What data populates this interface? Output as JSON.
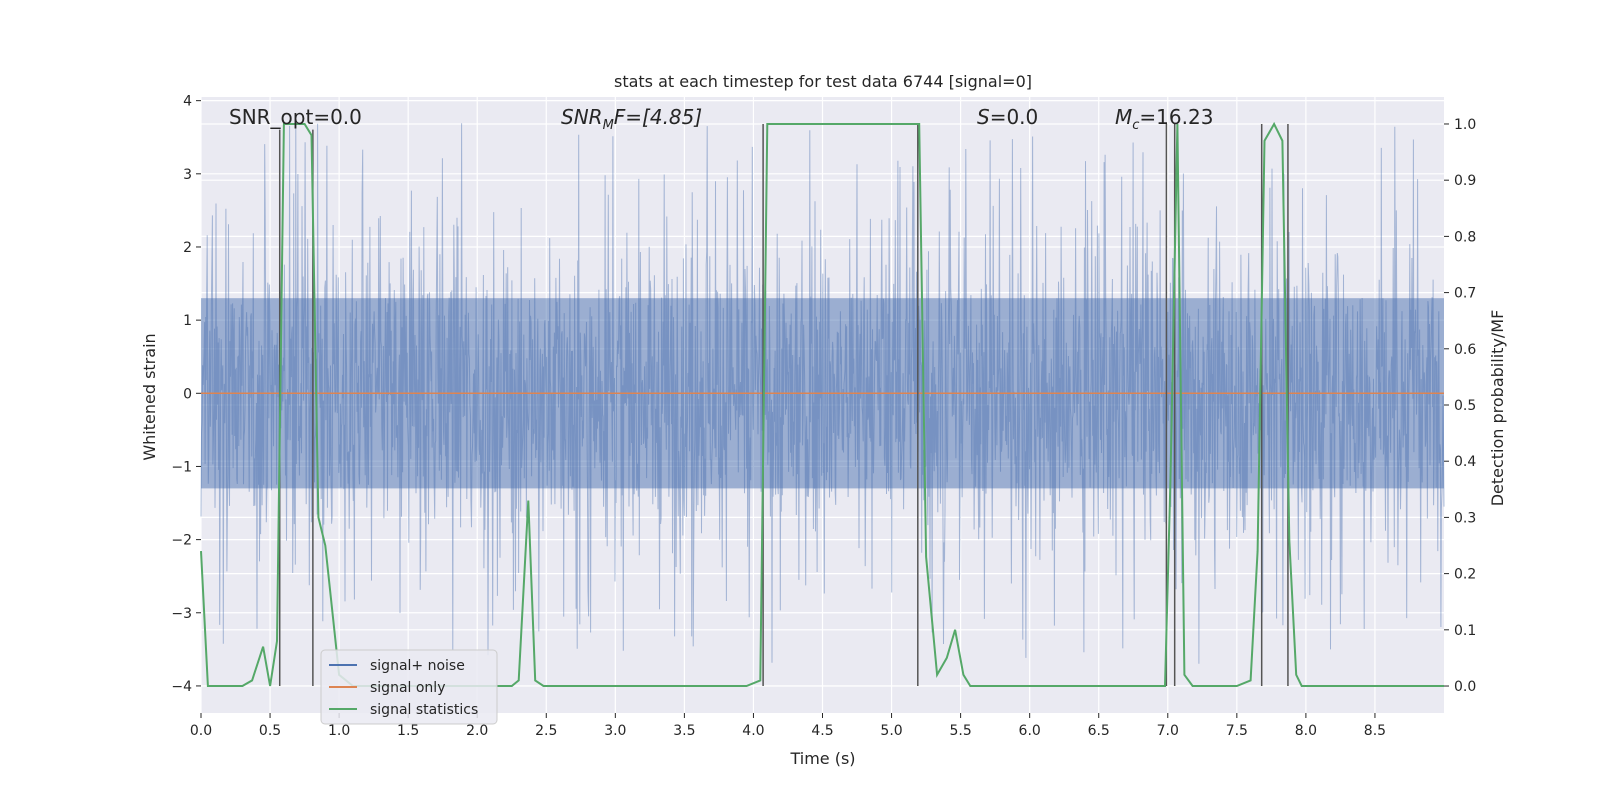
{
  "chart_data": {
    "type": "line",
    "title": "stats at each timestep for test data 6744 [signal=0]",
    "xlabel": "Time (s)",
    "ylabel": "Whitened strain",
    "y2label": "Detection probability/MF",
    "xlim": [
      0.0,
      9.0
    ],
    "ylim": [
      -4.37,
      4.05
    ],
    "y2lim": [
      -0.048,
      1.048
    ],
    "xticks": [
      0.0,
      0.5,
      1.0,
      1.5,
      2.0,
      2.5,
      3.0,
      3.5,
      4.0,
      4.5,
      5.0,
      5.5,
      6.0,
      6.5,
      7.0,
      7.5,
      8.0,
      8.5
    ],
    "xtick_labels": [
      "0.0",
      "0.5",
      "1.0",
      "1.5",
      "2.0",
      "2.5",
      "3.0",
      "3.5",
      "4.0",
      "4.5",
      "5.0",
      "5.5",
      "6.0",
      "6.5",
      "7.0",
      "7.5",
      "8.0",
      "8.5"
    ],
    "yticks": [
      4,
      3,
      2,
      1,
      0,
      -1,
      -2,
      -3,
      -4
    ],
    "ytick_labels": [
      "4",
      "3",
      "2",
      "1",
      "0",
      "−1",
      "−2",
      "−3",
      "−4"
    ],
    "y2ticks": [
      1.0,
      0.9,
      0.8,
      0.7,
      0.6,
      0.5,
      0.4,
      0.3,
      0.2,
      0.1,
      0.0
    ],
    "y2tick_labels": [
      "1.0",
      "0.9",
      "0.8",
      "0.7",
      "0.6",
      "0.5",
      "0.4",
      "0.3",
      "0.2",
      "0.1",
      "0.0"
    ],
    "annotations": {
      "snr_opt": "SNR_opt=0.0",
      "snr_mf_main": "SNR",
      "snr_mf_sub": "M",
      "snr_mf_rest": "F=[4.85]",
      "s_var": "S",
      "s_rest": "=0.0",
      "mc_main": "M",
      "mc_sub": "c",
      "mc_rest": "=16.23"
    },
    "legend": {
      "location": "lower-left",
      "entries": [
        "signal+ noise",
        "signal only",
        "signal statistics"
      ]
    },
    "series": [
      {
        "name": "signal+ noise",
        "axis": "left",
        "color": "#4c72b0",
        "description": "whitened strain noise, roughly uniform amplitude about ±2, peaks to about ±3.7",
        "noise_envelope": {
          "core": 1.3,
          "peak": 3.7
        }
      },
      {
        "name": "signal only",
        "axis": "left",
        "color": "#dd8452",
        "x": [
          0.0,
          9.0
        ],
        "y": [
          0.0,
          0.0
        ]
      },
      {
        "name": "signal statistics",
        "axis": "right",
        "color": "#55a868",
        "x": [
          0.0,
          0.05,
          0.1,
          0.2,
          0.3,
          0.37,
          0.45,
          0.5,
          0.55,
          0.6,
          0.65,
          0.75,
          0.8,
          0.85,
          0.9,
          1.0,
          1.1,
          1.2,
          1.5,
          2.0,
          2.25,
          2.3,
          2.37,
          2.42,
          2.48,
          2.55,
          3.0,
          3.5,
          3.8,
          3.95,
          4.05,
          4.1,
          4.15,
          4.5,
          5.0,
          5.2,
          5.25,
          5.33,
          5.4,
          5.46,
          5.52,
          5.57,
          5.65,
          6.0,
          6.5,
          6.98,
          7.02,
          7.07,
          7.12,
          7.18,
          7.3,
          7.5,
          7.6,
          7.65,
          7.7,
          7.77,
          7.83,
          7.88,
          7.93,
          7.97,
          8.05,
          8.5,
          9.0
        ],
        "y": [
          0.24,
          0.0,
          0.0,
          0.0,
          0.0,
          0.01,
          0.07,
          0.0,
          0.08,
          1.0,
          1.0,
          1.0,
          0.98,
          0.3,
          0.25,
          0.02,
          0.0,
          0.0,
          0.0,
          0.0,
          0.0,
          0.01,
          0.33,
          0.01,
          0.0,
          0.0,
          0.0,
          0.0,
          0.0,
          0.0,
          0.01,
          1.0,
          1.0,
          1.0,
          1.0,
          1.0,
          0.23,
          0.02,
          0.05,
          0.1,
          0.02,
          0.0,
          0.0,
          0.0,
          0.0,
          0.0,
          0.37,
          1.0,
          0.02,
          0.0,
          0.0,
          0.0,
          0.01,
          0.24,
          0.97,
          1.0,
          0.97,
          0.26,
          0.02,
          0.0,
          0.0,
          0.0,
          0.0
        ]
      }
    ],
    "vlines": [
      {
        "x": 0.57,
        "y_top": 0.99,
        "y_bottom": 0.0
      },
      {
        "x": 0.81,
        "y_top": 0.99,
        "y_bottom": 0.0
      },
      {
        "x": 4.07,
        "y_top": 1.0,
        "y_bottom": 0.0
      },
      {
        "x": 5.19,
        "y_top": 1.0,
        "y_bottom": 0.0
      },
      {
        "x": 6.99,
        "y_top": 1.0,
        "y_bottom": 0.0
      },
      {
        "x": 7.05,
        "y_top": 1.0,
        "y_bottom": 0.0
      },
      {
        "x": 7.68,
        "y_top": 1.0,
        "y_bottom": 0.0
      },
      {
        "x": 7.87,
        "y_top": 1.0,
        "y_bottom": 0.0
      }
    ],
    "grid": true
  },
  "colors": {
    "plot_background": "#eaeaf2",
    "grid": "#ffffff",
    "vline": "#555555"
  }
}
